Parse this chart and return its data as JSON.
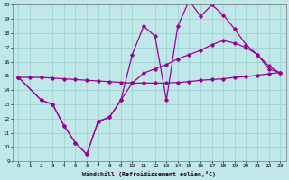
{
  "xlabel": "Windchill (Refroidissement éolien,°C)",
  "xlim": [
    -0.5,
    23.5
  ],
  "ylim": [
    9,
    20
  ],
  "yticks": [
    9,
    10,
    11,
    12,
    13,
    14,
    15,
    16,
    17,
    18,
    19,
    20
  ],
  "xticks": [
    0,
    1,
    2,
    3,
    4,
    5,
    6,
    7,
    8,
    9,
    10,
    11,
    12,
    13,
    14,
    15,
    16,
    17,
    18,
    19,
    20,
    21,
    22,
    23
  ],
  "bg_color": "#c0e8e8",
  "line_color": "#990099",
  "grid_color": "#99cccc",
  "line1_x": [
    0,
    1,
    2,
    3,
    4,
    5,
    6,
    7,
    8,
    9,
    10,
    11,
    12,
    13,
    14,
    15,
    16,
    17,
    18,
    19,
    20,
    21,
    22,
    23
  ],
  "line1_y": [
    14.9,
    14.9,
    14.9,
    14.85,
    14.8,
    14.75,
    14.7,
    14.65,
    14.6,
    14.55,
    14.5,
    14.5,
    14.5,
    14.5,
    14.55,
    14.6,
    14.7,
    14.75,
    14.8,
    14.9,
    14.95,
    15.05,
    15.15,
    15.25
  ],
  "line2_x": [
    0,
    2,
    3,
    4,
    5,
    6,
    7,
    8,
    9,
    10,
    11,
    12,
    13,
    14,
    15,
    16,
    17,
    18,
    19,
    20,
    21,
    22,
    23
  ],
  "line2_y": [
    14.9,
    13.3,
    13.0,
    11.5,
    10.3,
    9.5,
    11.8,
    12.1,
    13.3,
    16.5,
    18.5,
    17.8,
    13.3,
    18.5,
    20.3,
    19.2,
    20.0,
    19.3,
    18.3,
    17.2,
    16.5,
    15.5,
    15.2
  ],
  "line3_x": [
    0,
    2,
    3,
    4,
    5,
    6,
    7,
    8,
    9,
    10,
    11,
    12,
    13,
    14,
    15,
    16,
    17,
    18,
    19,
    20,
    21,
    22,
    23
  ],
  "line3_y": [
    14.9,
    13.3,
    13.0,
    11.5,
    10.3,
    9.5,
    11.8,
    12.1,
    13.3,
    14.5,
    15.2,
    15.5,
    15.8,
    16.2,
    16.5,
    16.8,
    17.2,
    17.5,
    17.3,
    17.0,
    16.5,
    15.7,
    15.2
  ]
}
